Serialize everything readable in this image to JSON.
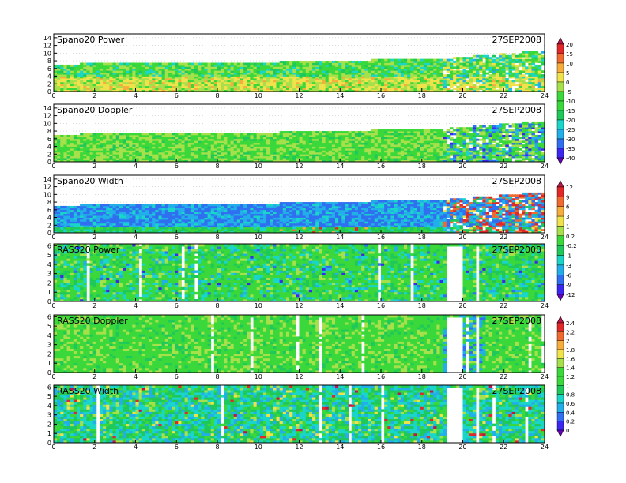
{
  "date_label": "27SEP2008",
  "colorbars": [
    {
      "name": "colorbar-a",
      "labels": [
        "20",
        "15",
        "10",
        "5",
        "0",
        "-5",
        "-10",
        "-15",
        "-20",
        "-25",
        "-30",
        "-35",
        "-40"
      ]
    },
    {
      "name": "colorbar-b",
      "labels": [
        "12",
        "9",
        "6",
        "3",
        "1",
        "0.2",
        "-0.2",
        "-1",
        "-3",
        "-6",
        "-9",
        "-12"
      ]
    },
    {
      "name": "colorbar-c",
      "labels": [
        "2.4",
        "2.2",
        "2",
        "1.8",
        "1.6",
        "1.4",
        "1.2",
        "1",
        "0.8",
        "0.6",
        "0.4",
        "0.2",
        "0"
      ]
    }
  ],
  "palette": [
    "#6a00c8",
    "#3a28f0",
    "#2f6ff0",
    "#22aee8",
    "#19d6c8",
    "#1ec85a",
    "#3ad83a",
    "#a6e04a",
    "#f0e24a",
    "#f7ad3c",
    "#f06a30",
    "#e02828",
    "#c0144a"
  ],
  "chart_data": [
    {
      "type": "heatmap",
      "title": "Spano20 Power",
      "colorbar": "colorbar-a",
      "x_ticks": [
        "0",
        "2",
        "4",
        "6",
        "8",
        "10",
        "12",
        "14",
        "16",
        "18",
        "20",
        "22",
        "24"
      ],
      "xlim": [
        0,
        24
      ],
      "y_ticks": [
        "0",
        "2",
        "4",
        "6",
        "8",
        "10",
        "12",
        "14"
      ],
      "ylim": [
        0,
        15
      ],
      "profile_top": [
        [
          0,
          6.8
        ],
        [
          4,
          7.5
        ],
        [
          6.5,
          7
        ],
        [
          19,
          8.4
        ],
        [
          24,
          10.5
        ]
      ]
    },
    {
      "type": "heatmap",
      "title": "Spano20 Doppler",
      "colorbar": "colorbar-a",
      "x_ticks": [
        "0",
        "2",
        "4",
        "6",
        "8",
        "10",
        "12",
        "14",
        "16",
        "18",
        "20",
        "22",
        "24"
      ],
      "xlim": [
        0,
        24
      ],
      "y_ticks": [
        "0",
        "2",
        "4",
        "6",
        "8",
        "10",
        "12",
        "14"
      ],
      "ylim": [
        0,
        15
      ],
      "profile_top": [
        [
          0,
          6.8
        ],
        [
          4,
          7.5
        ],
        [
          6.5,
          7
        ],
        [
          19,
          8.4
        ],
        [
          24,
          10.5
        ]
      ]
    },
    {
      "type": "heatmap",
      "title": "Spano20 Width",
      "colorbar": "colorbar-b",
      "x_ticks": [
        "0",
        "2",
        "4",
        "6",
        "8",
        "10",
        "12",
        "14",
        "16",
        "18",
        "20",
        "22",
        "24"
      ],
      "xlim": [
        0,
        24
      ],
      "y_ticks": [
        "0",
        "2",
        "4",
        "6",
        "8",
        "10",
        "12",
        "14"
      ],
      "ylim": [
        0,
        15
      ],
      "profile_top": [
        [
          0,
          6.8
        ],
        [
          4,
          7.5
        ],
        [
          6.5,
          7
        ],
        [
          19,
          8.4
        ],
        [
          24,
          10.5
        ]
      ]
    },
    {
      "type": "heatmap",
      "title": "RASS20 Power",
      "colorbar": "colorbar-b",
      "x_ticks": [
        "0",
        "2",
        "4",
        "6",
        "8",
        "10",
        "12",
        "14",
        "16",
        "18",
        "20",
        "22",
        "24"
      ],
      "xlim": [
        0,
        24
      ],
      "y_ticks": [
        "0",
        "1",
        "2",
        "3",
        "4",
        "5",
        "6"
      ],
      "ylim": [
        0,
        6.2
      ],
      "gaps": [
        [
          19.1,
          19.9
        ],
        [
          20.5,
          20.8
        ]
      ]
    },
    {
      "type": "heatmap",
      "title": "RASS20 Doppler",
      "colorbar": "colorbar-c",
      "x_ticks": [
        "0",
        "2",
        "4",
        "6",
        "8",
        "10",
        "12",
        "14",
        "16",
        "18",
        "20",
        "22",
        "24"
      ],
      "xlim": [
        0,
        24
      ],
      "y_ticks": [
        "0",
        "1",
        "2",
        "3",
        "4",
        "5",
        "6"
      ],
      "ylim": [
        0,
        6.2
      ],
      "gaps": [
        [
          19.1,
          19.9
        ],
        [
          20.5,
          20.8
        ]
      ]
    },
    {
      "type": "heatmap",
      "title": "RASS20 Width",
      "colorbar": "colorbar-c",
      "x_ticks": [
        "0",
        "2",
        "4",
        "6",
        "8",
        "10",
        "12",
        "14",
        "16",
        "18",
        "20",
        "22",
        "24"
      ],
      "xlim": [
        0,
        24
      ],
      "y_ticks": [
        "0",
        "1",
        "2",
        "3",
        "4",
        "5",
        "6"
      ],
      "ylim": [
        0,
        6.2
      ],
      "gaps": [
        [
          19.1,
          19.9
        ],
        [
          20.5,
          20.8
        ]
      ]
    }
  ]
}
